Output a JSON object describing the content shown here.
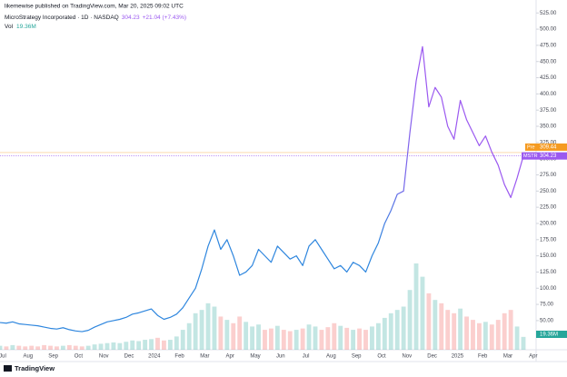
{
  "chart_data": {
    "type": "line",
    "publisher_note": "likemewise published on TradingView.com, Mar 20, 2025 09:02 UTC",
    "title": "MicroStrategy Incorporated · 1D · NASDAQ",
    "last_price": 304.23,
    "change": "+21.04 (+7.43%)",
    "volume_label": "Vol",
    "volume_last": "19.36M",
    "premarket_label": "Pre",
    "premarket_price": 309.44,
    "ticker": "MSTR",
    "brand": "TradingView",
    "line_colors": [
      "#2e86de",
      "#9b59f0"
    ],
    "volume_colors": {
      "up": "#26a69a",
      "down": "#ef5350"
    },
    "premarket_color": "#f59b22",
    "months": [
      "Jul",
      "Aug",
      "Sep",
      "Oct",
      "Nov",
      "Dec",
      "2024",
      "Feb",
      "Mar",
      "Apr",
      "May",
      "Jun",
      "Jul",
      "Aug",
      "Sep",
      "Oct",
      "Nov",
      "Dec",
      "2025",
      "Feb",
      "Mar",
      "Apr"
    ],
    "values": [
      47,
      46,
      48,
      45,
      44,
      43,
      42,
      40,
      38,
      37,
      39,
      36,
      34,
      33,
      35,
      40,
      44,
      48,
      50,
      52,
      55,
      60,
      62,
      65,
      68,
      58,
      52,
      55,
      60,
      70,
      85,
      100,
      130,
      165,
      190,
      160,
      175,
      150,
      120,
      125,
      135,
      160,
      150,
      140,
      165,
      155,
      145,
      150,
      135,
      165,
      175,
      160,
      145,
      130,
      135,
      125,
      140,
      135,
      125,
      150,
      170,
      200,
      220,
      245,
      250,
      340,
      420,
      473,
      380,
      410,
      395,
      350,
      330,
      390,
      360,
      340,
      320,
      335,
      310,
      290,
      260,
      240,
      270,
      304.23
    ],
    "volume": [
      6,
      5,
      7,
      6,
      5,
      6,
      5,
      7,
      6,
      5,
      6,
      7,
      6,
      5,
      6,
      8,
      9,
      10,
      11,
      10,
      12,
      14,
      13,
      15,
      16,
      18,
      14,
      15,
      20,
      30,
      40,
      55,
      60,
      70,
      65,
      50,
      45,
      40,
      50,
      42,
      35,
      38,
      30,
      32,
      36,
      30,
      28,
      30,
      32,
      38,
      35,
      30,
      34,
      40,
      36,
      33,
      30,
      32,
      30,
      35,
      40,
      48,
      55,
      60,
      65,
      90,
      130,
      110,
      85,
      75,
      70,
      60,
      55,
      62,
      50,
      45,
      40,
      42,
      38,
      45,
      55,
      60,
      35,
      19.36
    ],
    "ylim": [
      5,
      545
    ],
    "yticks": [
      {
        "value": 50,
        "label": "50.00"
      },
      {
        "value": 75,
        "label": "75.00"
      },
      {
        "value": 100,
        "label": "100.00"
      },
      {
        "value": 125,
        "label": "125.00"
      },
      {
        "value": 150,
        "label": "150.00"
      },
      {
        "value": 175,
        "label": "175.00"
      },
      {
        "value": 200,
        "label": "200.00"
      },
      {
        "value": 225,
        "label": "225.00"
      },
      {
        "value": 250,
        "label": "250.00"
      },
      {
        "value": 275,
        "label": "275.00"
      },
      {
        "value": 300,
        "label": "300.00"
      },
      {
        "value": 325,
        "label": "325.00"
      },
      {
        "value": 350,
        "label": "350.00"
      },
      {
        "value": 375,
        "label": "375.00"
      },
      {
        "value": 400,
        "label": "400.00"
      },
      {
        "value": 425,
        "label": "425.00"
      },
      {
        "value": 450,
        "label": "450.00"
      },
      {
        "value": 475,
        "label": "475.00"
      },
      {
        "value": 500,
        "label": "500.00"
      },
      {
        "value": 525,
        "label": "525.00"
      }
    ]
  }
}
